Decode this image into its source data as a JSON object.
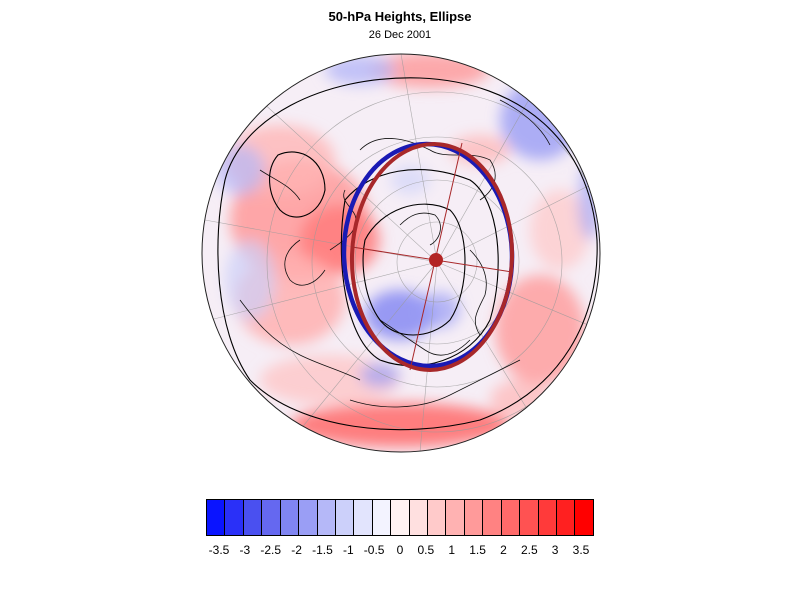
{
  "title": "50-hPa Heights, Ellipse",
  "subtitle": "26 Dec 2001",
  "map": {
    "projection": "polar-stereographic",
    "hemisphere": "north",
    "field": "50-hPa height anomaly",
    "overlays": [
      "coastlines",
      "lat-lon grid",
      "height contours",
      "fitted ellipse",
      "vortex centroid"
    ],
    "ellipse_colors": [
      "#1a1ab4",
      "#a8282a"
    ],
    "centroid_color": "#b32424"
  },
  "colorbar": {
    "colors": [
      "#0a14ff",
      "#2a30f8",
      "#4a50f0",
      "#6568f0",
      "#8085f2",
      "#9a9ef5",
      "#b5b8f8",
      "#ccd0fa",
      "#e2e4fd",
      "#f3f3ff",
      "#fff3f3",
      "#ffe0e0",
      "#ffcaca",
      "#ffb2b2",
      "#ff9a9a",
      "#ff8282",
      "#ff6a6a",
      "#ff5252",
      "#ff3a3a",
      "#ff2020",
      "#ff0000"
    ],
    "tick_values": [
      "-3.5",
      "-3",
      "-2.5",
      "-2",
      "-1.5",
      "-1",
      "-0.5",
      "0",
      "0.5",
      "1",
      "1.5",
      "2",
      "2.5",
      "3",
      "3.5"
    ]
  }
}
